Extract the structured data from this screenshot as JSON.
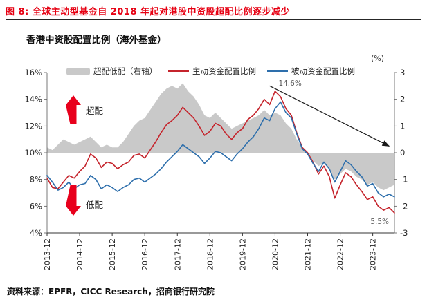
{
  "header": {
    "title": "图 8: 全球主动型基金自 2018 年起对港股中资股超配比例逐步减少"
  },
  "footer": {
    "source": "资料来源：EPFR，CICC Research，招商银行研究院"
  },
  "colors": {
    "title_red": "#e60012",
    "arrow_red": "#e8001c",
    "trend_arrow": "#1a1a1a"
  },
  "chart_data": {
    "type": "line",
    "title": "香港中资股配置比例（海外基金）",
    "x": [
      "2013-12",
      "2014-02",
      "2014-04",
      "2014-06",
      "2014-08",
      "2014-10",
      "2014-12",
      "2015-02",
      "2015-04",
      "2015-06",
      "2015-08",
      "2015-10",
      "2015-12",
      "2016-02",
      "2016-04",
      "2016-06",
      "2016-08",
      "2016-10",
      "2016-12",
      "2017-02",
      "2017-04",
      "2017-06",
      "2017-08",
      "2017-10",
      "2017-12",
      "2018-02",
      "2018-04",
      "2018-06",
      "2018-08",
      "2018-10",
      "2018-12",
      "2019-02",
      "2019-04",
      "2019-06",
      "2019-08",
      "2019-10",
      "2019-12",
      "2020-02",
      "2020-04",
      "2020-06",
      "2020-08",
      "2020-10",
      "2020-12",
      "2021-02",
      "2021-04",
      "2021-06",
      "2021-08",
      "2021-10",
      "2021-12",
      "2022-02",
      "2022-04",
      "2022-06",
      "2022-08",
      "2022-10",
      "2022-12",
      "2023-02",
      "2023-04",
      "2023-06",
      "2023-08",
      "2023-10",
      "2023-12",
      "2024-02",
      "2024-04",
      "2024-06",
      "2024-08"
    ],
    "x_ticks": [
      "2013-12",
      "2014-12",
      "2015-12",
      "2016-12",
      "2017-12",
      "2018-12",
      "2019-12",
      "2020-12",
      "2021-12",
      "2022-12",
      "2023-12"
    ],
    "left_axis": {
      "min": 4,
      "max": 16,
      "tick_labels": [
        "16%",
        "14%",
        "12%",
        "10%",
        "8%",
        "6%",
        "4%"
      ]
    },
    "right_axis": {
      "min": -3,
      "max": 3,
      "tick_labels": [
        "3",
        "2",
        "1",
        "0",
        "-1",
        "-2",
        "-3"
      ],
      "unit_label": "(%)"
    },
    "series": [
      {
        "name": "超配低配（右轴）",
        "type": "area",
        "axis": "right",
        "color": "#c9c9c9",
        "values": [
          0.2,
          0.1,
          0.3,
          0.5,
          0.4,
          0.3,
          0.4,
          0.5,
          0.6,
          0.4,
          0.2,
          0.3,
          0.2,
          0.2,
          0.4,
          0.7,
          1.0,
          1.2,
          1.3,
          1.6,
          1.9,
          2.2,
          2.4,
          2.5,
          2.4,
          2.6,
          2.3,
          2.1,
          1.8,
          1.4,
          1.3,
          1.5,
          1.3,
          1.1,
          0.9,
          1.0,
          1.1,
          1.2,
          1.3,
          1.4,
          1.6,
          1.4,
          1.5,
          1.4,
          1.1,
          0.9,
          0.5,
          0.2,
          0.0,
          -0.3,
          -0.5,
          -0.4,
          -0.6,
          -1.0,
          -0.8,
          -0.6,
          -0.7,
          -0.9,
          -1.0,
          -1.2,
          -1.1,
          -1.3,
          -1.4,
          -1.3,
          -1.2
        ]
      },
      {
        "name": "主动资金配置比例",
        "type": "line",
        "axis": "left",
        "color": "#c5242c",
        "values": [
          8.1,
          7.4,
          7.3,
          7.8,
          8.3,
          8.1,
          8.6,
          9.0,
          9.9,
          9.6,
          8.9,
          9.3,
          9.2,
          8.8,
          9.1,
          9.3,
          9.8,
          9.9,
          9.6,
          10.2,
          10.8,
          11.5,
          12.1,
          12.4,
          12.8,
          13.4,
          13.0,
          12.6,
          12.0,
          11.3,
          11.6,
          12.2,
          12.0,
          11.4,
          11.0,
          11.5,
          11.8,
          12.5,
          12.8,
          13.3,
          14.0,
          13.6,
          14.6,
          14.2,
          13.3,
          12.8,
          11.5,
          10.4,
          10.0,
          9.3,
          8.4,
          9.0,
          8.2,
          6.6,
          7.6,
          8.5,
          8.2,
          7.6,
          7.1,
          6.5,
          6.7,
          6.0,
          5.7,
          5.9,
          5.5
        ]
      },
      {
        "name": "被动资金配置比例",
        "type": "line",
        "axis": "left",
        "color": "#2e6fac",
        "values": [
          8.3,
          7.8,
          7.2,
          7.4,
          7.8,
          7.3,
          7.6,
          7.7,
          8.3,
          8.0,
          7.3,
          7.6,
          7.4,
          7.1,
          7.4,
          7.6,
          8.0,
          8.1,
          7.8,
          8.1,
          8.4,
          8.8,
          9.3,
          9.7,
          10.1,
          10.6,
          10.3,
          10.0,
          9.7,
          9.2,
          9.6,
          10.1,
          10.0,
          9.7,
          9.4,
          9.9,
          10.3,
          10.8,
          11.2,
          11.8,
          12.6,
          12.4,
          13.3,
          13.8,
          13.0,
          12.6,
          11.4,
          10.3,
          9.9,
          9.2,
          8.6,
          9.3,
          8.8,
          7.8,
          8.6,
          9.4,
          9.1,
          8.6,
          8.2,
          7.5,
          7.7,
          7.0,
          6.7,
          6.9,
          6.7
        ]
      }
    ],
    "annotations": {
      "overweight_label": "超配",
      "underweight_label": "低配",
      "peak_label": {
        "text": "14.6%",
        "x": "2020-12",
        "value": 14.6
      },
      "end_label": {
        "text": "5.5%",
        "x": "2024-08",
        "value": 5.5
      },
      "trend_arrow": {
        "from_x": "2020-10",
        "from_value": 15.0,
        "to_x": "2024-06",
        "to_value": 10.5
      }
    }
  }
}
